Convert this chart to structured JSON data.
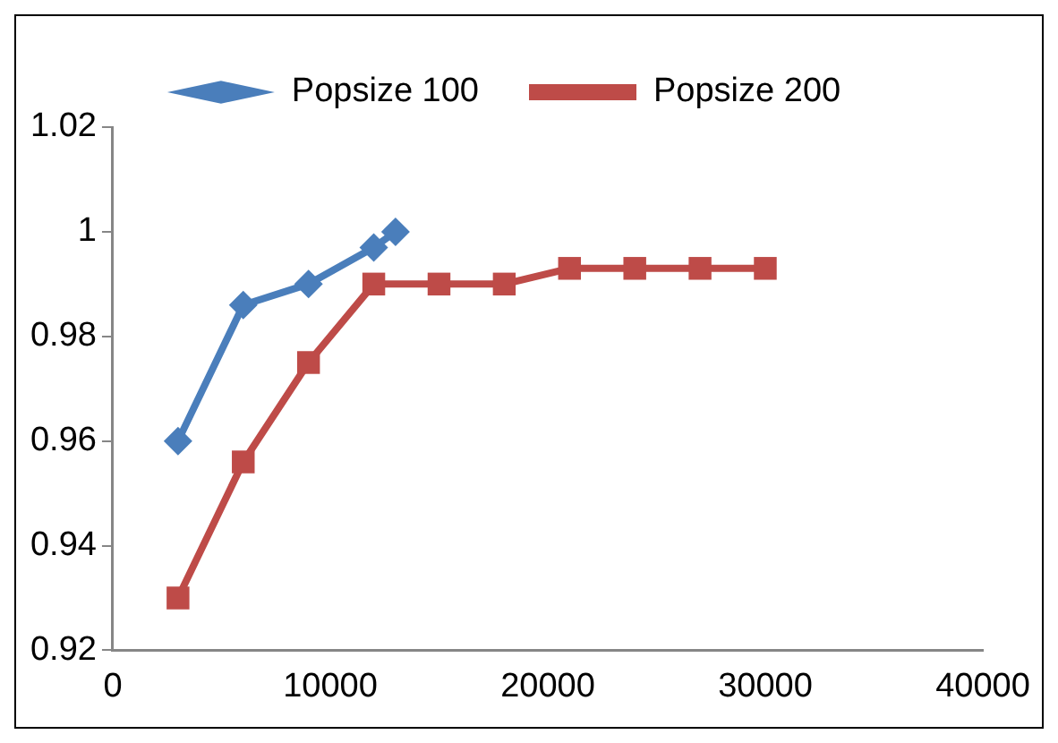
{
  "chart_data": {
    "type": "line",
    "legend": "top",
    "grid": false,
    "xlim": [
      0,
      40000
    ],
    "xticks": [
      0,
      10000,
      20000,
      30000,
      40000
    ],
    "ylim": [
      0.92,
      1.02
    ],
    "yticks": [
      0.92,
      0.94,
      0.96,
      0.98,
      1,
      1.02
    ],
    "series": [
      {
        "name": "Popsize 100",
        "color": "#4a7ebb",
        "marker": "diamond",
        "x": [
          3000,
          6000,
          9000,
          12000,
          13000
        ],
        "values": [
          0.96,
          0.986,
          0.99,
          0.997,
          1.0
        ]
      },
      {
        "name": "Popsize 200",
        "color": "#be4b48",
        "marker": "square",
        "x": [
          3000,
          6000,
          9000,
          12000,
          15000,
          18000,
          21000,
          24000,
          27000,
          30000
        ],
        "values": [
          0.93,
          0.956,
          0.975,
          0.99,
          0.99,
          0.99,
          0.993,
          0.993,
          0.993,
          0.993
        ]
      }
    ]
  }
}
